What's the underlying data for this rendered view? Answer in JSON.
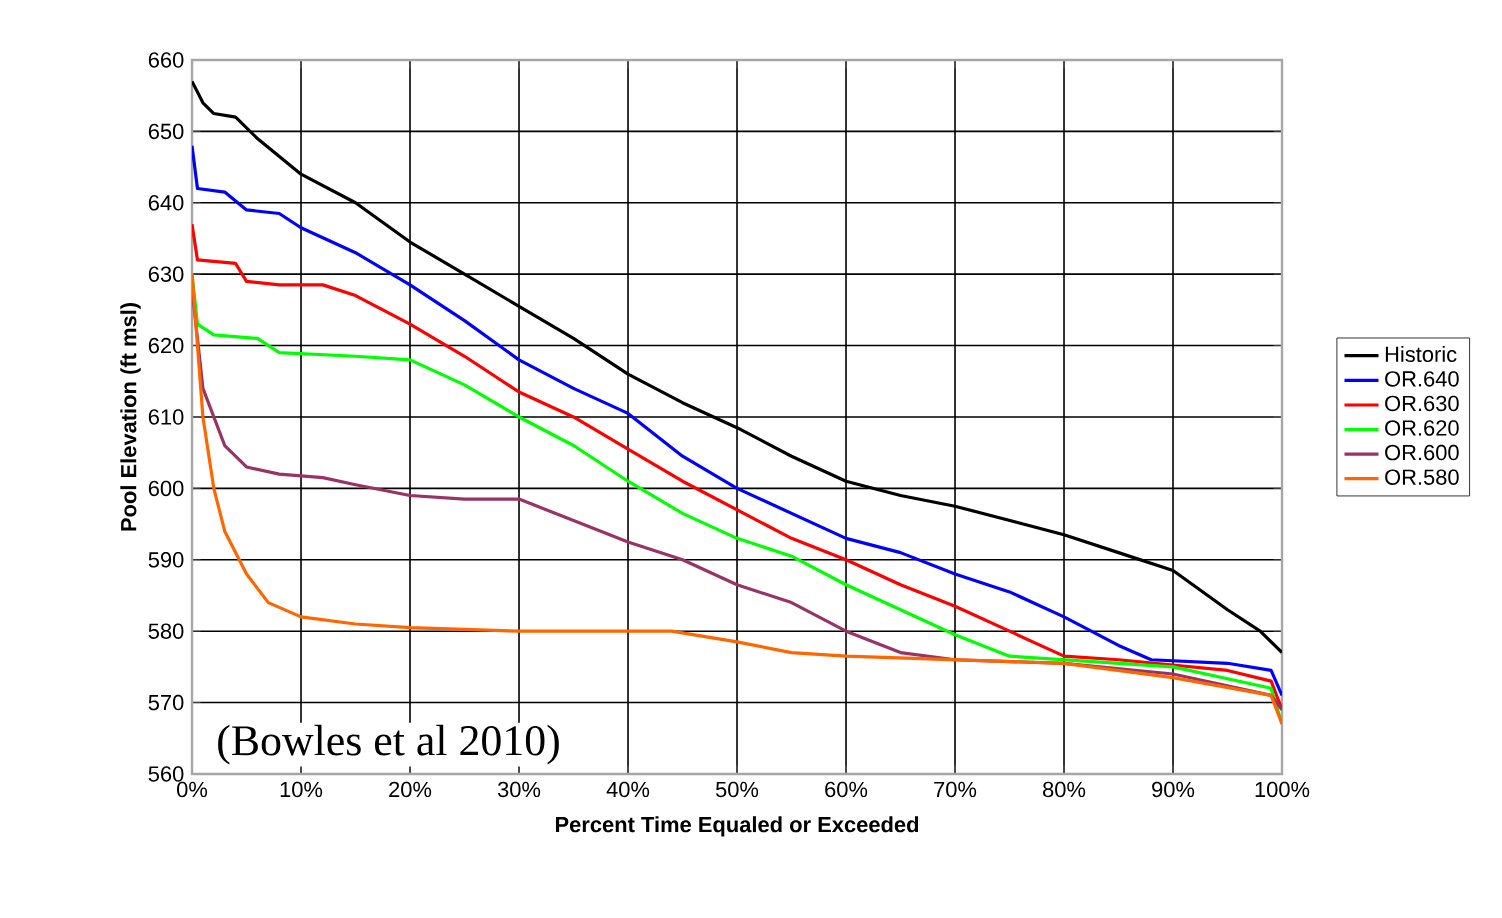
{
  "chart_data": {
    "type": "line",
    "xlabel": "Percent Time Equaled or Exceeded",
    "ylabel": "Pool Elevation (ft msl)",
    "annotations": [
      "(Bowles et al 2010)"
    ],
    "xlim": [
      0,
      100
    ],
    "ylim": [
      560,
      660
    ],
    "xticks": [
      {
        "value": 0,
        "label": "0%"
      },
      {
        "value": 10,
        "label": "10%"
      },
      {
        "value": 20,
        "label": "20%"
      },
      {
        "value": 30,
        "label": "30%"
      },
      {
        "value": 40,
        "label": "40%"
      },
      {
        "value": 50,
        "label": "50%"
      },
      {
        "value": 60,
        "label": "60%"
      },
      {
        "value": 70,
        "label": "70%"
      },
      {
        "value": 80,
        "label": "80%"
      },
      {
        "value": 90,
        "label": "90%"
      },
      {
        "value": 100,
        "label": "100%"
      }
    ],
    "yticks": [
      560,
      570,
      580,
      590,
      600,
      610,
      620,
      630,
      640,
      650,
      660
    ],
    "grid": true,
    "legend": "right",
    "marker": "none",
    "line_style": "solid",
    "series": [
      {
        "name": "Historic",
        "color": "#000000",
        "x": [
          0,
          1,
          2,
          4,
          6,
          10,
          15,
          20,
          25,
          30,
          35,
          40,
          45,
          50,
          55,
          60,
          65,
          70,
          75,
          80,
          85,
          90,
          95,
          98,
          100
        ],
        "values": [
          657,
          654,
          652.5,
          652,
          649,
          644,
          640,
          634.5,
          630,
          625.5,
          621,
          616,
          612,
          608.5,
          604.5,
          601,
          599,
          597.5,
          595.5,
          593.5,
          591,
          588.5,
          583,
          580,
          577
        ]
      },
      {
        "name": "OR.640",
        "color": "#0000ff",
        "x": [
          0,
          0.5,
          3,
          5,
          8,
          10,
          15,
          20,
          25,
          30,
          35,
          40,
          45,
          50,
          55,
          60,
          65,
          70,
          75,
          80,
          85,
          88,
          95,
          99,
          100
        ],
        "values": [
          648,
          642,
          641.5,
          639,
          638.5,
          636.5,
          633,
          628.5,
          623.5,
          618,
          614,
          610.5,
          604.5,
          600,
          596.5,
          593,
          591,
          588,
          585.5,
          582,
          578,
          576,
          575.5,
          574.5,
          571
        ]
      },
      {
        "name": "OR.630",
        "color": "#ff0000",
        "x": [
          0,
          0.5,
          4,
          5,
          8,
          12,
          15,
          20,
          25,
          30,
          35,
          40,
          45,
          50,
          55,
          60,
          65,
          70,
          75,
          80,
          85,
          95,
          99,
          100
        ],
        "values": [
          637,
          632,
          631.5,
          629,
          628.5,
          628.5,
          627,
          623,
          618.5,
          613.5,
          610,
          605.5,
          601,
          597,
          593,
          590,
          586.5,
          583.5,
          580,
          576.5,
          576,
          574.5,
          573,
          569
        ]
      },
      {
        "name": "OR.620",
        "color": "#00ff00",
        "x": [
          0,
          0.5,
          2,
          6,
          8,
          15,
          20,
          25,
          30,
          35,
          40,
          45,
          50,
          55,
          60,
          65,
          70,
          75,
          80,
          90,
          99,
          100
        ],
        "values": [
          630,
          623,
          621.5,
          621,
          619,
          618.5,
          618,
          614.5,
          610,
          606,
          601,
          596.5,
          593,
          590.5,
          586.5,
          583,
          579.5,
          576.5,
          null,
          575,
          572,
          567
        ]
      },
      {
        "name": "OR.600",
        "color": "#993366",
        "x": [
          0,
          1,
          3,
          5,
          8,
          12,
          15,
          20,
          25,
          30,
          35,
          40,
          45,
          50,
          55,
          60,
          65,
          70,
          80,
          90,
          99,
          100
        ],
        "values": [
          628,
          614,
          606,
          603,
          602,
          601.5,
          600.5,
          599,
          598.5,
          598.5,
          595.5,
          592.5,
          590,
          586.5,
          584,
          580,
          577,
          576,
          575.5,
          574,
          571,
          569
        ]
      },
      {
        "name": "OR.580",
        "color": "#ff6600",
        "x": [
          0,
          1,
          2,
          3,
          5,
          7,
          10,
          15,
          20,
          30,
          44,
          50,
          55,
          60,
          70,
          80,
          90,
          99,
          100
        ],
        "values": [
          630,
          610,
          600,
          594,
          588,
          584,
          582,
          581,
          580.5,
          580,
          580,
          578.5,
          577,
          576.5,
          576,
          575.5,
          573.5,
          571,
          567
        ]
      }
    ]
  }
}
